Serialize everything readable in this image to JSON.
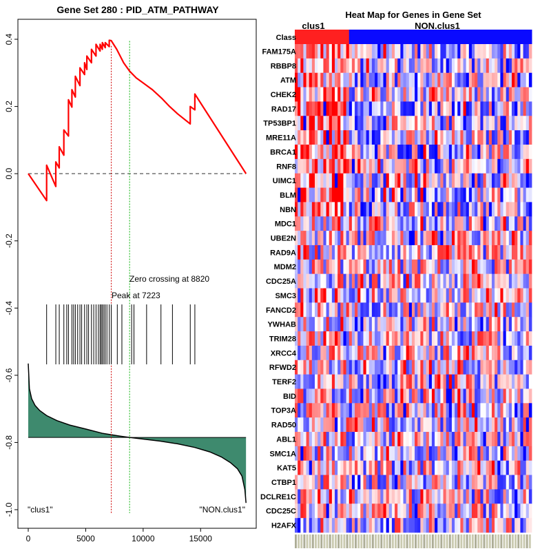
{
  "chart_data": [
    {
      "type": "line",
      "title": "Gene Set  280 : PID_ATM_PATHWAY",
      "xlim": [
        0,
        19000
      ],
      "ylim": [
        -1.0,
        0.4
      ],
      "x_ticks": [
        0,
        5000,
        10000,
        15000
      ],
      "x_tick_labels": [
        "0",
        "5000",
        "10000",
        "15000"
      ],
      "y_ticks": [
        0.4,
        0.2,
        0.0,
        -0.2,
        -0.4,
        -0.6,
        -0.8,
        -1.0
      ],
      "y_tick_labels": [
        "0.4",
        "0.2",
        "0.0",
        "-0.2",
        "-0.4",
        "-0.6",
        "-0.8",
        "-1.0"
      ],
      "peak": {
        "x": 7223,
        "label": "Peak at 7223"
      },
      "zero_crossing": {
        "x": 8820,
        "label": "Zero crossing at 8820"
      },
      "left_class_label": "\"clus1\"",
      "right_class_label": "\"NON.clus1\"",
      "enrichment_score_series": {
        "x": [
          0,
          1600,
          1600,
          2400,
          2400,
          2700,
          2700,
          3100,
          3100,
          3500,
          3500,
          3800,
          3800,
          4100,
          4100,
          4500,
          4500,
          4900,
          4900,
          5100,
          5100,
          5500,
          5500,
          5900,
          5900,
          6250,
          6250,
          6450,
          6450,
          6700,
          6700,
          7050,
          7050,
          7223,
          7700,
          8300,
          8820,
          9400,
          10000,
          10800,
          11600,
          12300,
          13000,
          14100,
          14100,
          14500,
          14500,
          18950
        ],
        "y": [
          0.0,
          -0.08,
          0.025,
          -0.038,
          0.035,
          0.017,
          0.08,
          0.055,
          0.13,
          0.112,
          0.22,
          0.198,
          0.25,
          0.228,
          0.29,
          0.262,
          0.315,
          0.295,
          0.33,
          0.31,
          0.35,
          0.33,
          0.37,
          0.35,
          0.385,
          0.365,
          0.385,
          0.37,
          0.39,
          0.375,
          0.39,
          0.378,
          0.397,
          0.396,
          0.37,
          0.33,
          0.305,
          0.285,
          0.27,
          0.25,
          0.225,
          0.2,
          0.178,
          0.148,
          0.2,
          0.19,
          0.237,
          0.0
        ]
      },
      "gene_hit_ranks": [
        1600,
        2400,
        2700,
        3100,
        3350,
        3500,
        3800,
        3950,
        4100,
        4300,
        4500,
        4650,
        4900,
        5100,
        5250,
        5500,
        5700,
        5900,
        6100,
        6250,
        6350,
        6450,
        6580,
        6700,
        6850,
        7050,
        7223,
        7750,
        8150,
        9000,
        9200,
        10300,
        11550,
        12550,
        14100,
        14500
      ],
      "ranked_metric_curve": {
        "x": [
          0,
          100,
          300,
          600,
          1000,
          1600,
          2500,
          3600,
          5000,
          6500,
          8000,
          8820,
          10000,
          11500,
          13000,
          14500,
          15800,
          16800,
          17600,
          18200,
          18600,
          18850,
          18950
        ],
        "y": [
          -0.565,
          -0.64,
          -0.67,
          -0.69,
          -0.705,
          -0.72,
          -0.735,
          -0.748,
          -0.76,
          -0.773,
          -0.781,
          -0.785,
          -0.79,
          -0.796,
          -0.804,
          -0.815,
          -0.828,
          -0.843,
          -0.86,
          -0.878,
          -0.9,
          -0.94,
          -0.98
        ]
      },
      "ranked_metric_baseline": -0.785
    },
    {
      "type": "heatmap",
      "title": "Heat Map for Genes in Gene Set",
      "class_row_label": "Class",
      "classes": [
        {
          "name": "clus1",
          "color": "#ff2020",
          "samples": 19
        },
        {
          "name": "NON.clus1",
          "color": "#0a0aff",
          "samples": 64
        }
      ],
      "genes": [
        "FAM175A",
        "RBBP8",
        "ATM",
        "CHEK2",
        "RAD17",
        "TP53BP1",
        "MRE11A",
        "BRCA1",
        "RNF8",
        "UIMC1",
        "BLM",
        "NBN",
        "MDC1",
        "UBE2N",
        "RAD9A",
        "MDM2",
        "CDC25A",
        "SMC3",
        "FANCD2",
        "YWHAB",
        "TRIM28",
        "XRCC4",
        "RFWD2",
        "TERF2",
        "BID",
        "TOP3A",
        "RAD50",
        "ABL1",
        "SMC1A",
        "KAT5",
        "CTBP1",
        "DCLRE1C",
        "CDC25C",
        "H2AFX"
      ],
      "color_scale": {
        "low": "#0000ff",
        "mid": "#ffffff",
        "high": "#ff0000"
      }
    }
  ]
}
